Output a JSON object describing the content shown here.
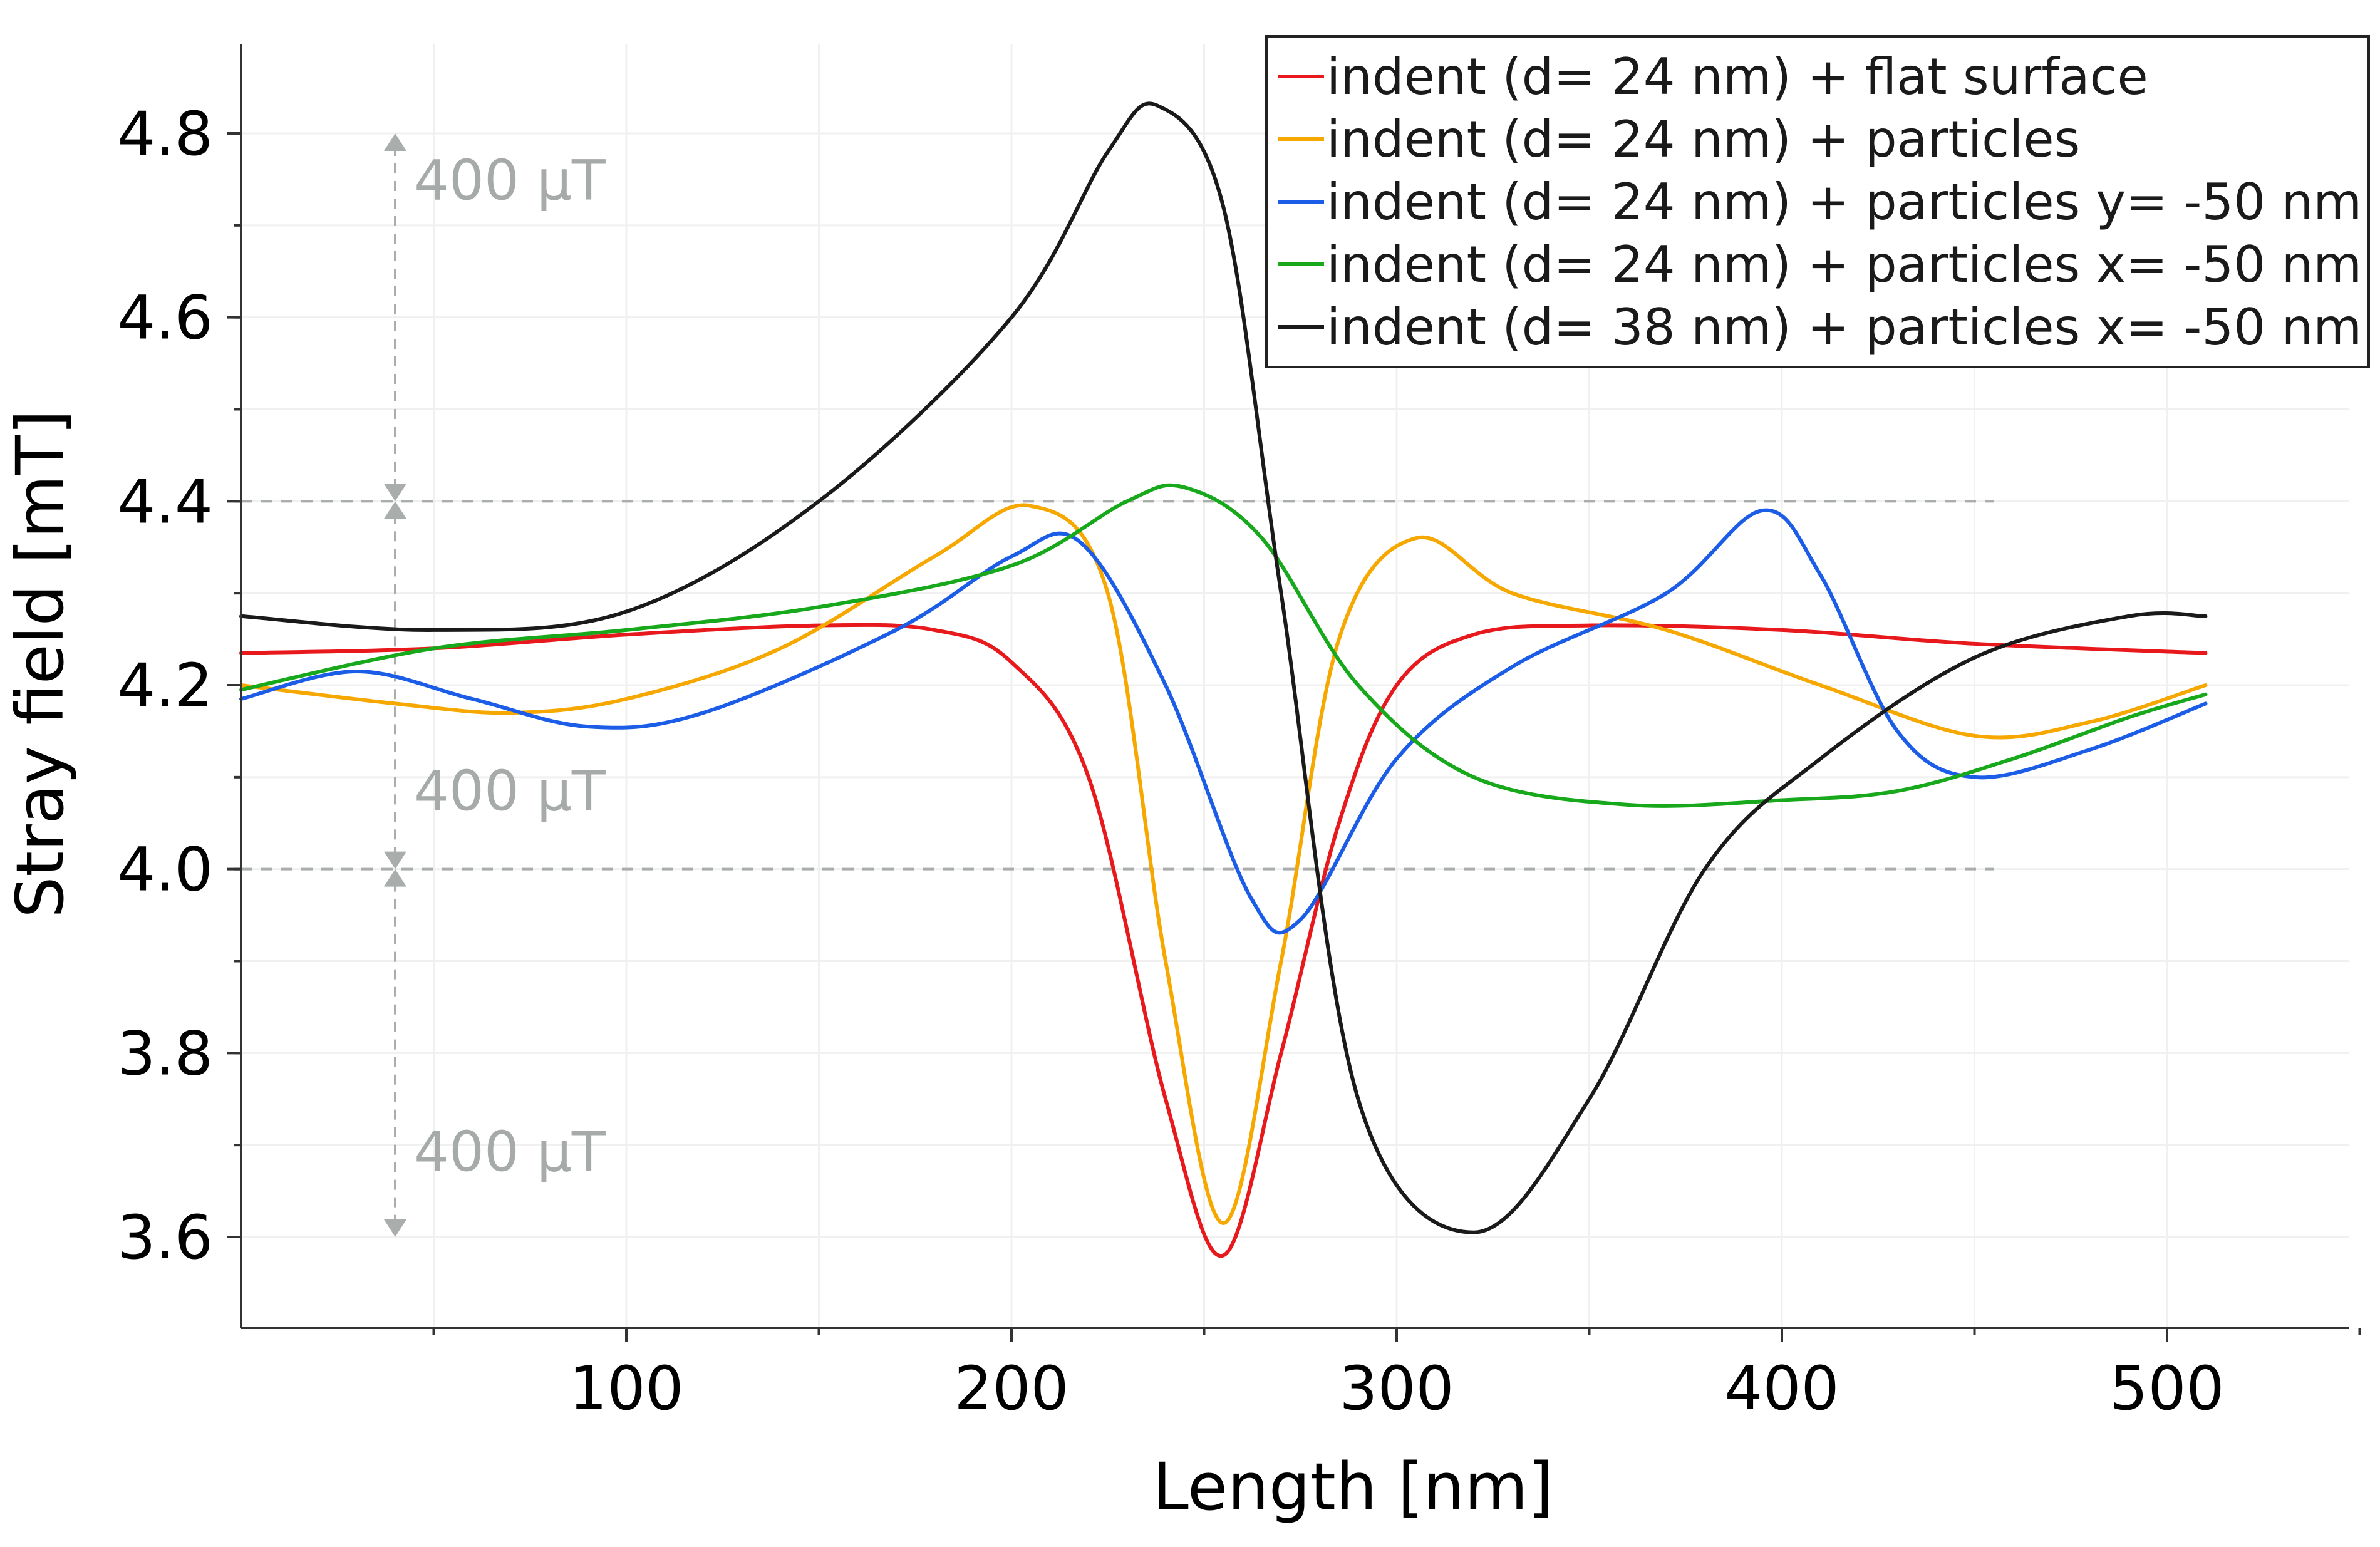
{
  "chart_data": {
    "type": "line",
    "title": "",
    "xlabel": "Length [nm]",
    "ylabel": "Stray field [mT]",
    "xlim": [
      0,
      550
    ],
    "ylim": [
      3.5,
      4.9
    ],
    "xticks": [
      100,
      200,
      300,
      400,
      500
    ],
    "xtick_labels": [
      "100",
      "200",
      "300",
      "400",
      "500"
    ],
    "yticks": [
      3.6,
      3.8,
      4.0,
      4.2,
      4.4,
      4.6,
      4.8
    ],
    "ytick_labels": [
      "3.6",
      "3.8",
      "4.0",
      "4.2",
      "4.4",
      "4.6",
      "4.8"
    ],
    "grid": true,
    "legend_position": "top-right",
    "reference_lines": [
      4.0,
      4.4
    ],
    "annotations": [
      {
        "text": "400 µT",
        "y_from": 4.4,
        "y_to": 4.8
      },
      {
        "text": "400 µT",
        "y_from": 4.0,
        "y_to": 4.4
      },
      {
        "text": "400 µT",
        "y_from": 3.6,
        "y_to": 4.0
      }
    ],
    "series": [
      {
        "name": "indent (d= 24 nm) + flat surface",
        "color": "#e8191c",
        "x": [
          0,
          50,
          100,
          150,
          180,
          200,
          220,
          240,
          255,
          270,
          285,
          300,
          320,
          350,
          400,
          450,
          510
        ],
        "y": [
          4.235,
          4.24,
          4.255,
          4.265,
          4.26,
          4.225,
          4.1,
          3.75,
          3.58,
          3.8,
          4.05,
          4.2,
          4.255,
          4.265,
          4.26,
          4.245,
          4.235
        ]
      },
      {
        "name": "indent (d= 24 nm) + particles",
        "color": "#f7a800",
        "x": [
          0,
          40,
          70,
          100,
          140,
          180,
          205,
          225,
          240,
          255,
          270,
          285,
          305,
          330,
          370,
          410,
          450,
          480,
          510
        ],
        "y": [
          4.2,
          4.18,
          4.17,
          4.185,
          4.24,
          4.34,
          4.395,
          4.3,
          3.9,
          3.615,
          3.9,
          4.25,
          4.36,
          4.3,
          4.26,
          4.2,
          4.145,
          4.16,
          4.2
        ]
      },
      {
        "name": "indent (d= 24 nm) + particles y= -50 nm",
        "color": "#1c5de8",
        "x": [
          0,
          30,
          60,
          90,
          120,
          170,
          200,
          218,
          240,
          262,
          275,
          300,
          330,
          370,
          395,
          410,
          430,
          450,
          480,
          510
        ],
        "y": [
          4.185,
          4.215,
          4.185,
          4.155,
          4.17,
          4.26,
          4.34,
          4.355,
          4.2,
          3.97,
          3.945,
          4.12,
          4.22,
          4.3,
          4.39,
          4.32,
          4.15,
          4.1,
          4.13,
          4.18
        ]
      },
      {
        "name": "indent (d= 24 nm) + particles x= -50 nm",
        "color": "#18a81c",
        "x": [
          0,
          50,
          100,
          150,
          200,
          230,
          245,
          265,
          290,
          320,
          360,
          400,
          430,
          460,
          490,
          510
        ],
        "y": [
          4.195,
          4.24,
          4.26,
          4.285,
          4.33,
          4.4,
          4.415,
          4.36,
          4.2,
          4.1,
          4.07,
          4.075,
          4.085,
          4.12,
          4.165,
          4.19
        ]
      },
      {
        "name": "indent (d= 38 nm) + particles x= -50 nm",
        "color": "#1a1a1a",
        "x": [
          0,
          50,
          100,
          150,
          200,
          225,
          238,
          255,
          270,
          290,
          320,
          350,
          380,
          410,
          450,
          490,
          510
        ],
        "y": [
          4.275,
          4.26,
          4.28,
          4.4,
          4.6,
          4.78,
          4.83,
          4.72,
          4.3,
          3.75,
          3.605,
          3.75,
          4.0,
          4.12,
          4.23,
          4.275,
          4.275
        ]
      }
    ]
  }
}
